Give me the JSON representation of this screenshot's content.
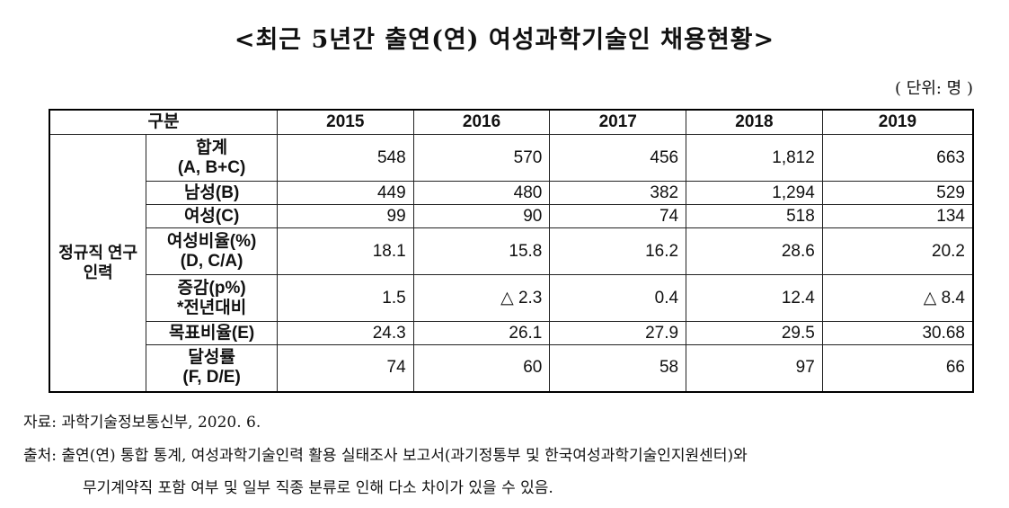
{
  "title": "<최근 5년간 출연(연) 여성과학기술인 채용현황>",
  "unit": "( 단위: 명 )",
  "table": {
    "header": {
      "category": "구분",
      "years": [
        "2015",
        "2016",
        "2017",
        "2018",
        "2019"
      ]
    },
    "group_label_line1": "정규직 연구",
    "group_label_line2": "인력",
    "rows": [
      {
        "label_line1": "합계",
        "label_line2": "(A, B+C)",
        "values": [
          "548",
          "570",
          "456",
          "1,812",
          "663"
        ]
      },
      {
        "label_line1": "남성(B)",
        "label_line2": "",
        "values": [
          "449",
          "480",
          "382",
          "1,294",
          "529"
        ]
      },
      {
        "label_line1": "여성(C)",
        "label_line2": "",
        "values": [
          "99",
          "90",
          "74",
          "518",
          "134"
        ]
      },
      {
        "label_line1": "여성비율(%)",
        "label_line2": "(D, C/A)",
        "values": [
          "18.1",
          "15.8",
          "16.2",
          "28.6",
          "20.2"
        ]
      },
      {
        "label_line1": "증감(p%)",
        "label_line2": "*전년대비",
        "values": [
          "1.5",
          "△ 2.3",
          "0.4",
          "12.4",
          "△ 8.4"
        ]
      },
      {
        "label_line1": "목표비율(E)",
        "label_line2": "",
        "values": [
          "24.3",
          "26.1",
          "27.9",
          "29.5",
          "30.68"
        ]
      },
      {
        "label_line1": "달성률",
        "label_line2": "(F, D/E)",
        "values": [
          "74",
          "60",
          "58",
          "97",
          "66"
        ]
      }
    ]
  },
  "source": "자료: 과학기술정보통신부, 2020. 6.",
  "note_line1": "출처: 출연(연) 통합 통계, 여성과학기술인력 활용 실태조사 보고서(과기정통부 및 한국여성과학기술인지원센터)와",
  "note_line2": "무기계약직 포함 여부 및 일부 직종 분류로 인해 다소 차이가 있을 수 있음."
}
